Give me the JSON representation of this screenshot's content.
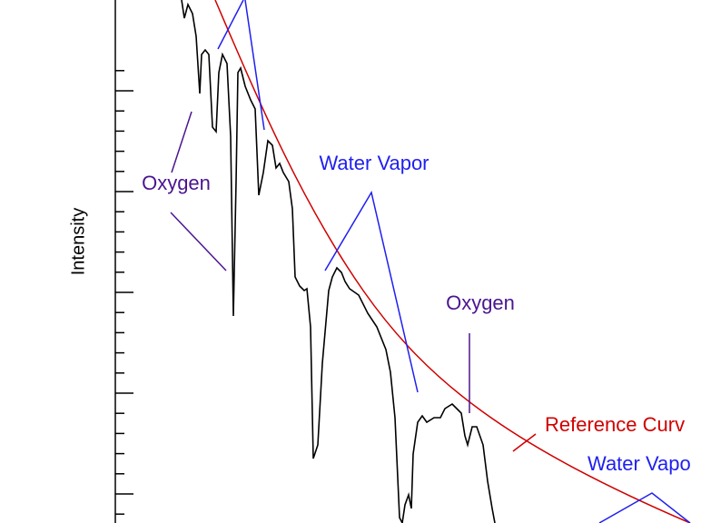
{
  "chart_data": {
    "type": "line",
    "ylabel": "Intensity",
    "annotations": [
      {
        "text": "Oxygen",
        "color": "#4b1590"
      },
      {
        "text": "Water Vapor",
        "color": "#1f1ff0"
      },
      {
        "text": "Oxygen",
        "color": "#4b1590"
      },
      {
        "text": "Reference Curv",
        "color": "#d00000"
      },
      {
        "text": "Water Vapo",
        "color": "#1f1ff0"
      }
    ]
  }
}
